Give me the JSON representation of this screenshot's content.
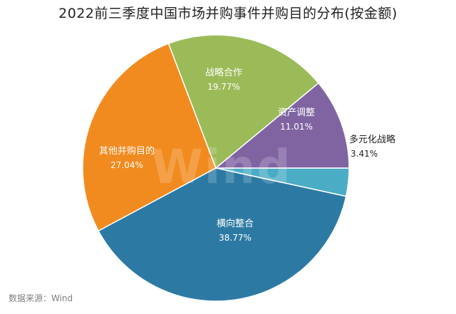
{
  "chart_data": {
    "type": "pie",
    "title": "2022前三季度中国市场并购事件并购目的分布(按金额)",
    "unit": "%",
    "slices": [
      {
        "label": "多元化战略",
        "value": 3.41,
        "value_text": "3.41%",
        "color": "#4BACC6"
      },
      {
        "label": "横向整合",
        "value": 38.77,
        "value_text": "38.77%",
        "color": "#2C7AA4"
      },
      {
        "label": "其他并购目的",
        "value": 27.04,
        "value_text": "27.04%",
        "color": "#F28B1F"
      },
      {
        "label": "战略合作",
        "value": 19.77,
        "value_text": "19.77%",
        "color": "#9BBB59"
      },
      {
        "label": "资产调整",
        "value": 11.01,
        "value_text": "11.01%",
        "color": "#8064A2"
      }
    ]
  },
  "footer": {
    "source": "数据来源：Wind"
  },
  "watermark": "Wind"
}
